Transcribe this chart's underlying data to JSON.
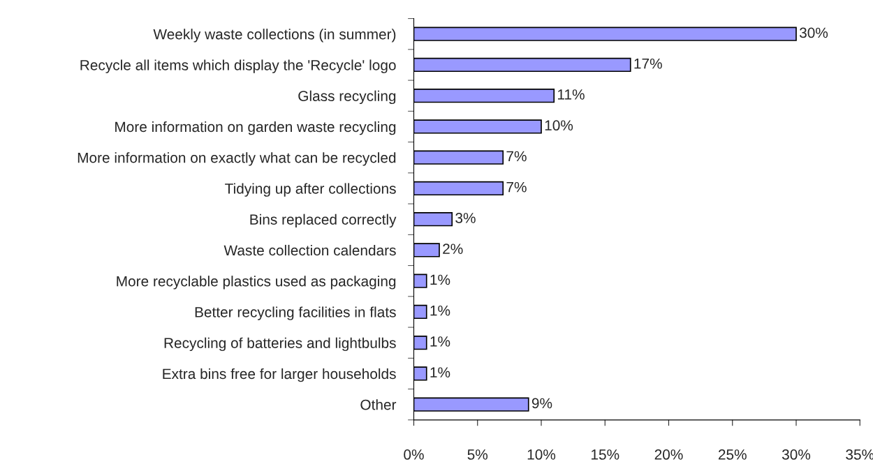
{
  "chart_data": {
    "type": "bar",
    "orientation": "horizontal",
    "categories": [
      "Weekly waste collections (in summer)",
      "Recycle all items which display the 'Recycle' logo",
      "Glass recycling",
      "More information on garden waste recycling",
      "More information on exactly what can be recycled",
      "Tidying up after collections",
      "Bins replaced correctly",
      "Waste collection calendars",
      "More recyclable plastics used as packaging",
      "Better recycling facilities in flats",
      "Recycling of batteries and lightbulbs",
      "Extra bins free for larger households",
      "Other"
    ],
    "values": [
      30,
      17,
      11,
      10,
      7,
      7,
      3,
      2,
      1,
      1,
      1,
      1,
      9
    ],
    "value_labels": [
      "30%",
      "17%",
      "11%",
      "10%",
      "7%",
      "7%",
      "3%",
      "2%",
      "1%",
      "1%",
      "1%",
      "1%",
      "9%"
    ],
    "color": "#9999ff",
    "xlim": [
      0,
      35
    ],
    "xticks": [
      {
        "value": 0,
        "label": "0%"
      },
      {
        "value": 5,
        "label": "5%"
      },
      {
        "value": 10,
        "label": "10%"
      },
      {
        "value": 15,
        "label": "15%"
      },
      {
        "value": 20,
        "label": "20%"
      },
      {
        "value": 25,
        "label": "25%"
      },
      {
        "value": 30,
        "label": "30%"
      },
      {
        "value": 35,
        "label": "35%"
      }
    ],
    "grid": false,
    "legend": false
  }
}
